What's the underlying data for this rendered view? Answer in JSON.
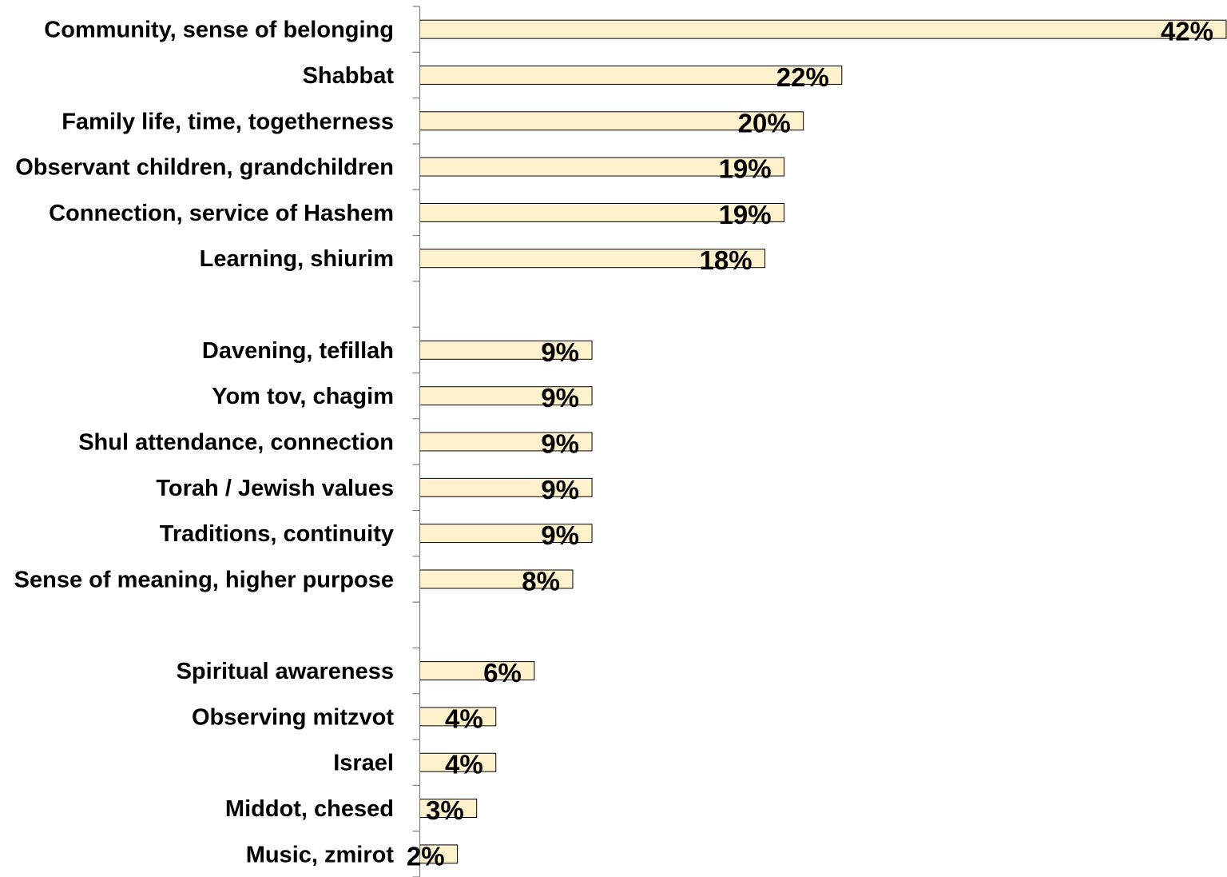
{
  "chart_data": {
    "type": "bar",
    "orientation": "horizontal",
    "title": "",
    "xlabel": "",
    "ylabel": "",
    "grid": false,
    "legend": "none",
    "bar_color": "#FFF2CC",
    "bar_border_color": "#000000",
    "xlim": [
      0,
      42
    ],
    "categories": [
      "Community, sense of belonging",
      "Shabbat",
      "Family life, time, togetherness",
      "Observant children, grandchildren",
      "Connection, service of Hashem",
      "Learning, shiurim",
      "",
      "Davening, tefillah",
      "Yom tov, chagim",
      "Shul attendance, connection",
      "Torah / Jewish values",
      "Traditions, continuity",
      "Sense of meaning, higher purpose",
      "",
      "Spiritual awareness",
      "Observing mitzvot",
      "Israel",
      "Middot, chesed",
      "Music, zmirot"
    ],
    "values": [
      42,
      22,
      20,
      19,
      19,
      18,
      null,
      9,
      9,
      9,
      9,
      9,
      8,
      null,
      6,
      4,
      4,
      3,
      2
    ],
    "value_labels": [
      "42%",
      "22%",
      "20%",
      "19%",
      "19%",
      "18%",
      "",
      "9%",
      "9%",
      "9%",
      "9%",
      "9%",
      "8%",
      "",
      "6%",
      "4%",
      "4%",
      "3%",
      "2%"
    ]
  }
}
